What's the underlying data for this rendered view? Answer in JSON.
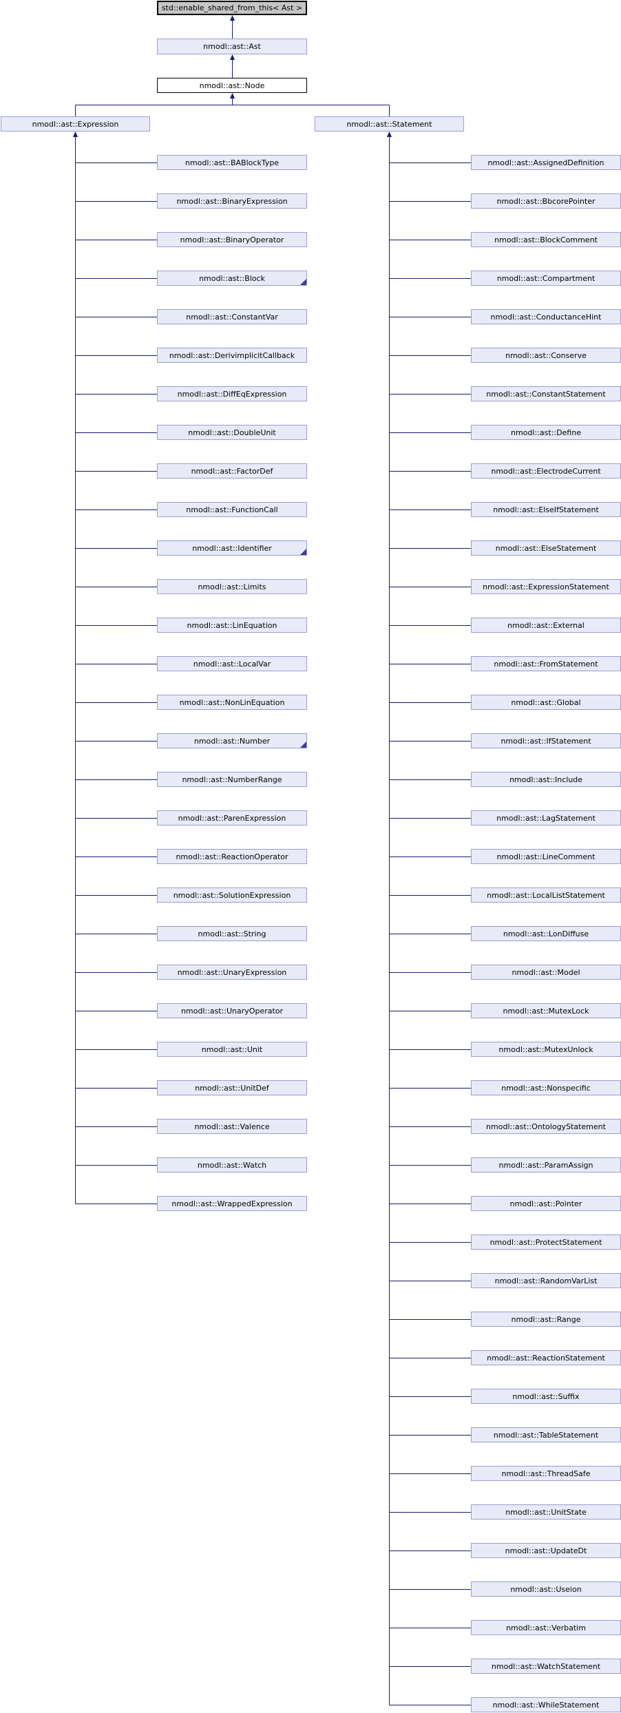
{
  "diagram": {
    "kind": "doxygen-inheritance-graph",
    "root": {
      "label": "std::enable_shared_from_this< Ast >"
    },
    "base": {
      "label": "nmodl::ast::Ast"
    },
    "node": {
      "label": "nmodl::ast::Node"
    },
    "expression": {
      "label": "nmodl::ast::Expression",
      "children": [
        {
          "label": "nmodl::ast::BABlockType",
          "truncated": false
        },
        {
          "label": "nmodl::ast::BinaryExpression",
          "truncated": false
        },
        {
          "label": "nmodl::ast::BinaryOperator",
          "truncated": false
        },
        {
          "label": "nmodl::ast::Block",
          "truncated": true
        },
        {
          "label": "nmodl::ast::ConstantVar",
          "truncated": false
        },
        {
          "label": "nmodl::ast::DerivimplicitCallback",
          "truncated": false
        },
        {
          "label": "nmodl::ast::DiffEqExpression",
          "truncated": false
        },
        {
          "label": "nmodl::ast::DoubleUnit",
          "truncated": false
        },
        {
          "label": "nmodl::ast::FactorDef",
          "truncated": false
        },
        {
          "label": "nmodl::ast::FunctionCall",
          "truncated": false
        },
        {
          "label": "nmodl::ast::Identifier",
          "truncated": true
        },
        {
          "label": "nmodl::ast::Limits",
          "truncated": false
        },
        {
          "label": "nmodl::ast::LinEquation",
          "truncated": false
        },
        {
          "label": "nmodl::ast::LocalVar",
          "truncated": false
        },
        {
          "label": "nmodl::ast::NonLinEquation",
          "truncated": false
        },
        {
          "label": "nmodl::ast::Number",
          "truncated": true
        },
        {
          "label": "nmodl::ast::NumberRange",
          "truncated": false
        },
        {
          "label": "nmodl::ast::ParenExpression",
          "truncated": false
        },
        {
          "label": "nmodl::ast::ReactionOperator",
          "truncated": false
        },
        {
          "label": "nmodl::ast::SolutionExpression",
          "truncated": false
        },
        {
          "label": "nmodl::ast::String",
          "truncated": false
        },
        {
          "label": "nmodl::ast::UnaryExpression",
          "truncated": false
        },
        {
          "label": "nmodl::ast::UnaryOperator",
          "truncated": false
        },
        {
          "label": "nmodl::ast::Unit",
          "truncated": false
        },
        {
          "label": "nmodl::ast::UnitDef",
          "truncated": false
        },
        {
          "label": "nmodl::ast::Valence",
          "truncated": false
        },
        {
          "label": "nmodl::ast::Watch",
          "truncated": false
        },
        {
          "label": "nmodl::ast::WrappedExpression",
          "truncated": false
        }
      ]
    },
    "statement": {
      "label": "nmodl::ast::Statement",
      "children": [
        {
          "label": "nmodl::ast::AssignedDefinition",
          "truncated": false
        },
        {
          "label": "nmodl::ast::BbcorePointer",
          "truncated": false
        },
        {
          "label": "nmodl::ast::BlockComment",
          "truncated": false
        },
        {
          "label": "nmodl::ast::Compartment",
          "truncated": false
        },
        {
          "label": "nmodl::ast::ConductanceHint",
          "truncated": false
        },
        {
          "label": "nmodl::ast::Conserve",
          "truncated": false
        },
        {
          "label": "nmodl::ast::ConstantStatement",
          "truncated": false
        },
        {
          "label": "nmodl::ast::Define",
          "truncated": false
        },
        {
          "label": "nmodl::ast::ElectrodeCurrent",
          "truncated": false
        },
        {
          "label": "nmodl::ast::ElseIfStatement",
          "truncated": false
        },
        {
          "label": "nmodl::ast::ElseStatement",
          "truncated": false
        },
        {
          "label": "nmodl::ast::ExpressionStatement",
          "truncated": false
        },
        {
          "label": "nmodl::ast::External",
          "truncated": false
        },
        {
          "label": "nmodl::ast::FromStatement",
          "truncated": false
        },
        {
          "label": "nmodl::ast::Global",
          "truncated": false
        },
        {
          "label": "nmodl::ast::IfStatement",
          "truncated": false
        },
        {
          "label": "nmodl::ast::Include",
          "truncated": false
        },
        {
          "label": "nmodl::ast::LagStatement",
          "truncated": false
        },
        {
          "label": "nmodl::ast::LineComment",
          "truncated": false
        },
        {
          "label": "nmodl::ast::LocalListStatement",
          "truncated": false
        },
        {
          "label": "nmodl::ast::LonDiffuse",
          "truncated": false
        },
        {
          "label": "nmodl::ast::Model",
          "truncated": false
        },
        {
          "label": "nmodl::ast::MutexLock",
          "truncated": false
        },
        {
          "label": "nmodl::ast::MutexUnlock",
          "truncated": false
        },
        {
          "label": "nmodl::ast::Nonspecific",
          "truncated": false
        },
        {
          "label": "nmodl::ast::OntologyStatement",
          "truncated": false
        },
        {
          "label": "nmodl::ast::ParamAssign",
          "truncated": false
        },
        {
          "label": "nmodl::ast::Pointer",
          "truncated": false
        },
        {
          "label": "nmodl::ast::ProtectStatement",
          "truncated": false
        },
        {
          "label": "nmodl::ast::RandomVarList",
          "truncated": false
        },
        {
          "label": "nmodl::ast::Range",
          "truncated": false
        },
        {
          "label": "nmodl::ast::ReactionStatement",
          "truncated": false
        },
        {
          "label": "nmodl::ast::Suffix",
          "truncated": false
        },
        {
          "label": "nmodl::ast::TableStatement",
          "truncated": false
        },
        {
          "label": "nmodl::ast::ThreadSafe",
          "truncated": false
        },
        {
          "label": "nmodl::ast::UnitState",
          "truncated": false
        },
        {
          "label": "nmodl::ast::UpdateDt",
          "truncated": false
        },
        {
          "label": "nmodl::ast::Useion",
          "truncated": false
        },
        {
          "label": "nmodl::ast::Verbatim",
          "truncated": false
        },
        {
          "label": "nmodl::ast::WatchStatement",
          "truncated": false
        },
        {
          "label": "nmodl::ast::WhileStatement",
          "truncated": false
        }
      ]
    },
    "colors": {
      "background": "#FFFFFF",
      "arrow": "#191970",
      "class_fill": "#E9EAF8",
      "class_border": "#9A9CCE",
      "external_fill": "#C5C5C5",
      "external_border": "#000000",
      "current_fill": "#FFFFFF",
      "current_border": "#000000",
      "text": "#000000",
      "truncation_marker": "#3D3D94"
    }
  }
}
